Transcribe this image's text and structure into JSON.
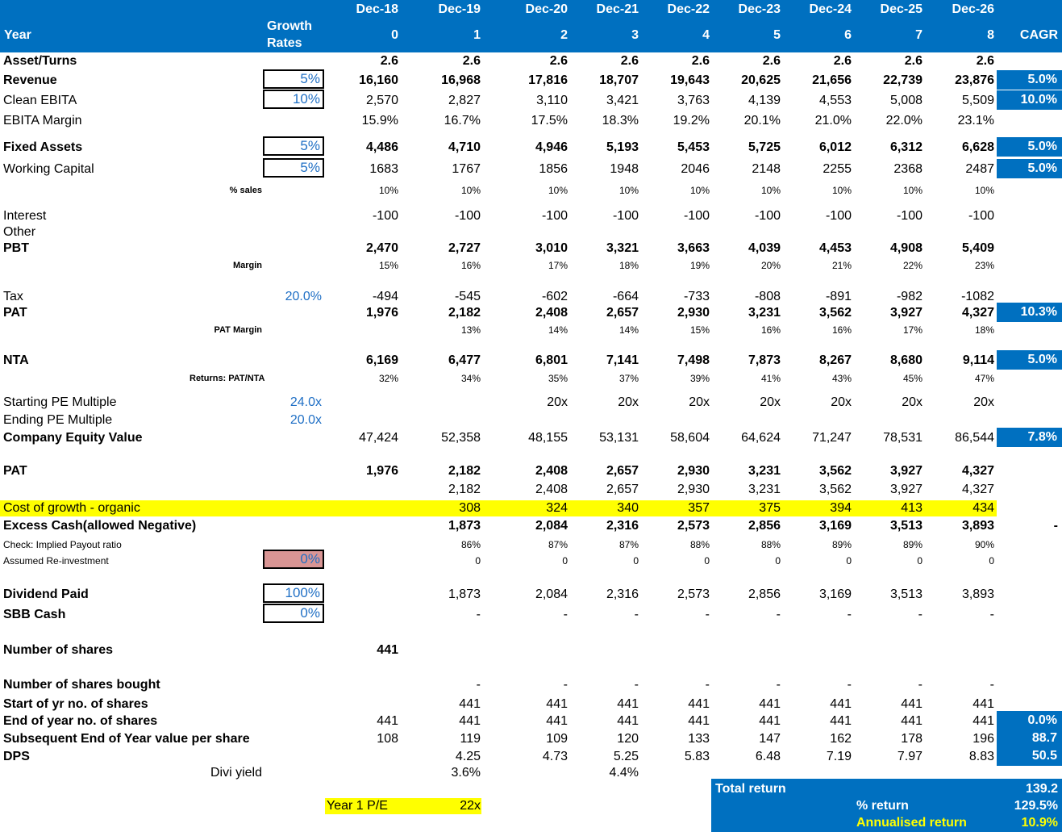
{
  "header": {
    "year_label": "Year",
    "growth_label_1": "Growth",
    "growth_label_2": "Rates",
    "dates": [
      "Dec-18",
      "Dec-19",
      "Dec-20",
      "Dec-21",
      "Dec-22",
      "Dec-23",
      "Dec-24",
      "Dec-25",
      "Dec-26"
    ],
    "years": [
      "0",
      "1",
      "2",
      "3",
      "4",
      "5",
      "6",
      "7",
      "8"
    ],
    "cagr_label": "CAGR"
  },
  "rows": {
    "asset_turns": {
      "label": "Asset/Turns",
      "values": [
        "2.6",
        "2.6",
        "2.6",
        "2.6",
        "2.6",
        "2.6",
        "2.6",
        "2.6",
        "2.6"
      ]
    },
    "revenue": {
      "label": "Revenue",
      "input": "5%",
      "values": [
        "16,160",
        "16,968",
        "17,816",
        "18,707",
        "19,643",
        "20,625",
        "21,656",
        "22,739",
        "23,876"
      ],
      "cagr": "5.0%"
    },
    "clean_ebita": {
      "label": "Clean EBITA",
      "input": "10%",
      "values": [
        "2,570",
        "2,827",
        "3,110",
        "3,421",
        "3,763",
        "4,139",
        "4,553",
        "5,008",
        "5,509"
      ],
      "cagr": "10.0%"
    },
    "ebita_margin": {
      "label": "EBITA Margin",
      "values": [
        "15.9%",
        "16.7%",
        "17.5%",
        "18.3%",
        "19.2%",
        "20.1%",
        "21.0%",
        "22.0%",
        "23.1%"
      ]
    },
    "fixed_assets": {
      "label": "Fixed Assets",
      "input": "5%",
      "values": [
        "4,486",
        "4,710",
        "4,946",
        "5,193",
        "5,453",
        "5,725",
        "6,012",
        "6,312",
        "6,628"
      ],
      "cagr": "5.0%"
    },
    "working_capital": {
      "label": "Working Capital",
      "input": "5%",
      "values": [
        "1683",
        "1767",
        "1856",
        "1948",
        "2046",
        "2148",
        "2255",
        "2368",
        "2487"
      ],
      "cagr": "5.0%"
    },
    "pct_sales": {
      "label": "% sales",
      "values": [
        "10%",
        "10%",
        "10%",
        "10%",
        "10%",
        "10%",
        "10%",
        "10%",
        "10%"
      ]
    },
    "interest": {
      "label": "Interest",
      "values": [
        "-100",
        "-100",
        "-100",
        "-100",
        "-100",
        "-100",
        "-100",
        "-100",
        "-100"
      ]
    },
    "other": {
      "label": "Other"
    },
    "pbt": {
      "label": "PBT",
      "values": [
        "2,470",
        "2,727",
        "3,010",
        "3,321",
        "3,663",
        "4,039",
        "4,453",
        "4,908",
        "5,409"
      ]
    },
    "margin": {
      "label": "Margin",
      "values": [
        "15%",
        "16%",
        "17%",
        "18%",
        "19%",
        "20%",
        "21%",
        "22%",
        "23%"
      ]
    },
    "tax": {
      "label": "Tax",
      "rate": "20.0%",
      "values": [
        "-494",
        "-545",
        "-602",
        "-664",
        "-733",
        "-808",
        "-891",
        "-982",
        "-1082"
      ]
    },
    "pat": {
      "label": "PAT",
      "values": [
        "1,976",
        "2,182",
        "2,408",
        "2,657",
        "2,930",
        "3,231",
        "3,562",
        "3,927",
        "4,327"
      ],
      "cagr": "10.3%"
    },
    "pat_margin": {
      "label": "PAT Margin",
      "values": [
        "13%",
        "14%",
        "14%",
        "15%",
        "16%",
        "16%",
        "17%",
        "18%"
      ]
    },
    "nta": {
      "label": "NTA",
      "values": [
        "6,169",
        "6,477",
        "6,801",
        "7,141",
        "7,498",
        "7,873",
        "8,267",
        "8,680",
        "9,114"
      ],
      "cagr": "5.0%"
    },
    "returns_pat_nta": {
      "label": "Returns: PAT/NTA",
      "values": [
        "32%",
        "34%",
        "35%",
        "37%",
        "39%",
        "41%",
        "43%",
        "45%",
        "47%"
      ]
    },
    "starting_pe": {
      "label": "Starting PE Multiple",
      "rate": "24.0x",
      "values": [
        "20x",
        "20x",
        "20x",
        "20x",
        "20x",
        "20x",
        "20x"
      ]
    },
    "ending_pe": {
      "label": "Ending PE Multiple",
      "rate": "20.0x"
    },
    "equity_value": {
      "label": "Company Equity Value",
      "values": [
        "47,424",
        "52,358",
        "48,155",
        "53,131",
        "58,604",
        "64,624",
        "71,247",
        "78,531",
        "86,544"
      ],
      "cagr": "7.8%"
    },
    "pat2": {
      "label": "PAT",
      "values": [
        "1,976",
        "2,182",
        "2,408",
        "2,657",
        "2,930",
        "3,231",
        "3,562",
        "3,927",
        "4,327"
      ]
    },
    "pat2_sub": {
      "values": [
        "2,182",
        "2,408",
        "2,657",
        "2,930",
        "3,231",
        "3,562",
        "3,927",
        "4,327"
      ]
    },
    "cost_growth": {
      "label": "Cost of growth - organic",
      "values": [
        "308",
        "324",
        "340",
        "357",
        "375",
        "394",
        "413",
        "434"
      ]
    },
    "excess_cash": {
      "label": "Excess Cash(allowed Negative)",
      "values": [
        "1,873",
        "2,084",
        "2,316",
        "2,573",
        "2,856",
        "3,169",
        "3,513",
        "3,893"
      ],
      "dash": "-"
    },
    "payout_check": {
      "label": "Check: Implied Payout ratio",
      "values": [
        "86%",
        "87%",
        "87%",
        "88%",
        "88%",
        "89%",
        "89%",
        "90%"
      ]
    },
    "reinvestment": {
      "label": "Assumed Re-investment",
      "input": "0%",
      "values": [
        "0",
        "0",
        "0",
        "0",
        "0",
        "0",
        "0",
        "0"
      ]
    },
    "dividend_paid": {
      "label": "Dividend Paid",
      "input": "100%",
      "values": [
        "1,873",
        "2,084",
        "2,316",
        "2,573",
        "2,856",
        "3,169",
        "3,513",
        "3,893"
      ]
    },
    "sbb_cash": {
      "label": "SBB Cash",
      "input": "0%",
      "values": [
        "-",
        "-",
        "-",
        "-",
        "-",
        "-",
        "-",
        "-"
      ]
    },
    "num_shares": {
      "label": "Number of shares",
      "value": "441"
    },
    "shares_bought": {
      "label": "Number of shares bought",
      "values": [
        "-",
        "-",
        "-",
        "-",
        "-",
        "-",
        "-",
        "-"
      ]
    },
    "start_shares": {
      "label": "Start of yr no. of shares",
      "values": [
        "441",
        "441",
        "441",
        "441",
        "441",
        "441",
        "441",
        "441"
      ]
    },
    "end_shares": {
      "label": "End of year no. of shares",
      "values": [
        "441",
        "441",
        "441",
        "441",
        "441",
        "441",
        "441",
        "441",
        "441"
      ],
      "cagr": "0.0%"
    },
    "value_per_share": {
      "label": "Subsequent End of Year value per share",
      "values": [
        "108",
        "119",
        "109",
        "120",
        "133",
        "147",
        "162",
        "178",
        "196"
      ],
      "cagr": "88.7"
    },
    "dps": {
      "label": "DPS",
      "values": [
        "4.25",
        "4.73",
        "5.25",
        "5.83",
        "6.48",
        "7.19",
        "7.97",
        "8.83"
      ],
      "cagr": "50.5"
    },
    "divi_yield": {
      "label": "Divi yield",
      "values": [
        "3.6%",
        "4.4%"
      ]
    }
  },
  "year1_pe": {
    "label": "Year 1 P/E",
    "value": "22x"
  },
  "totals": {
    "total_return_label": "Total return",
    "total_return": "139.2",
    "pct_return_label": "% return",
    "pct_return": "129.5%",
    "annualised_label": "Annualised return",
    "annualised": "10.9%"
  },
  "colors": {
    "header_blue": "#0070c0",
    "highlight_yellow": "#ffff00",
    "input_blue": "#1f6fc5",
    "pink_input": "#d99594"
  }
}
